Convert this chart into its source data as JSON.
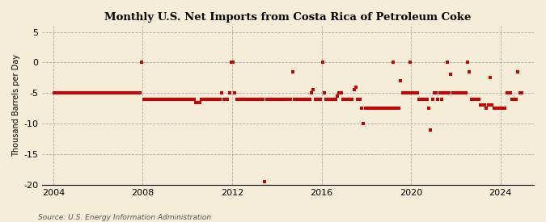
{
  "title": "Monthly U.S. Net Imports from Costa Rica of Petroleum Coke",
  "ylabel": "Thousand Barrels per Day",
  "source": "Source: U.S. Energy Information Administration",
  "background_color": "#f5edd8",
  "plot_bg_color": "#f5edd8",
  "grid_color": "#aaaaaa",
  "marker_color": "#cc0000",
  "ylim": [
    -20,
    6
  ],
  "yticks": [
    5,
    0,
    -5,
    -10,
    -15,
    -20
  ],
  "xlim_start": 2003.5,
  "xlim_end": 2025.5,
  "xticks": [
    2004,
    2008,
    2012,
    2016,
    2020,
    2024
  ],
  "vgrid_years": [
    2004,
    2008,
    2012,
    2016,
    2020,
    2024
  ],
  "data_points": [
    [
      2004.04,
      -5
    ],
    [
      2004.12,
      -5
    ],
    [
      2004.21,
      -5
    ],
    [
      2004.29,
      -5
    ],
    [
      2004.37,
      -5
    ],
    [
      2004.46,
      -5
    ],
    [
      2004.54,
      -5
    ],
    [
      2004.62,
      -5
    ],
    [
      2004.71,
      -5
    ],
    [
      2004.79,
      -5
    ],
    [
      2004.88,
      -5
    ],
    [
      2004.96,
      -5
    ],
    [
      2005.04,
      -5
    ],
    [
      2005.12,
      -5
    ],
    [
      2005.21,
      -5
    ],
    [
      2005.29,
      -5
    ],
    [
      2005.37,
      -5
    ],
    [
      2005.46,
      -5
    ],
    [
      2005.54,
      -5
    ],
    [
      2005.62,
      -5
    ],
    [
      2005.71,
      -5
    ],
    [
      2005.79,
      -5
    ],
    [
      2005.88,
      -5
    ],
    [
      2005.96,
      -5
    ],
    [
      2006.04,
      -5
    ],
    [
      2006.12,
      -5
    ],
    [
      2006.21,
      -5
    ],
    [
      2006.29,
      -5
    ],
    [
      2006.37,
      -5
    ],
    [
      2006.46,
      -5
    ],
    [
      2006.54,
      -5
    ],
    [
      2006.62,
      -5
    ],
    [
      2006.71,
      -5
    ],
    [
      2006.79,
      -5
    ],
    [
      2006.88,
      -5
    ],
    [
      2006.96,
      -5
    ],
    [
      2007.04,
      -5
    ],
    [
      2007.12,
      -5
    ],
    [
      2007.21,
      -5
    ],
    [
      2007.29,
      -5
    ],
    [
      2007.37,
      -5
    ],
    [
      2007.46,
      -5
    ],
    [
      2007.54,
      -5
    ],
    [
      2007.62,
      -5
    ],
    [
      2007.71,
      -5
    ],
    [
      2007.79,
      -5
    ],
    [
      2007.88,
      -5
    ],
    [
      2007.96,
      0
    ],
    [
      2008.04,
      -6
    ],
    [
      2008.12,
      -6
    ],
    [
      2008.21,
      -6
    ],
    [
      2008.29,
      -6
    ],
    [
      2008.37,
      -6
    ],
    [
      2008.46,
      -6
    ],
    [
      2008.54,
      -6
    ],
    [
      2008.62,
      -6
    ],
    [
      2008.71,
      -6
    ],
    [
      2008.79,
      -6
    ],
    [
      2008.88,
      -6
    ],
    [
      2008.96,
      -6
    ],
    [
      2009.04,
      -6
    ],
    [
      2009.12,
      -6
    ],
    [
      2009.21,
      -6
    ],
    [
      2009.29,
      -6
    ],
    [
      2009.37,
      -6
    ],
    [
      2009.46,
      -6
    ],
    [
      2009.54,
      -6
    ],
    [
      2009.62,
      -6
    ],
    [
      2009.71,
      -6
    ],
    [
      2009.79,
      -6
    ],
    [
      2009.88,
      -6
    ],
    [
      2009.96,
      -6
    ],
    [
      2010.04,
      -6
    ],
    [
      2010.12,
      -6
    ],
    [
      2010.21,
      -6
    ],
    [
      2010.29,
      -6
    ],
    [
      2010.37,
      -6.5
    ],
    [
      2010.46,
      -6.5
    ],
    [
      2010.54,
      -6.5
    ],
    [
      2010.62,
      -6
    ],
    [
      2010.71,
      -6
    ],
    [
      2010.79,
      -6
    ],
    [
      2010.88,
      -6
    ],
    [
      2010.96,
      -6
    ],
    [
      2011.04,
      -6
    ],
    [
      2011.12,
      -6
    ],
    [
      2011.21,
      -6
    ],
    [
      2011.29,
      -6
    ],
    [
      2011.37,
      -6
    ],
    [
      2011.46,
      -6
    ],
    [
      2011.54,
      -5
    ],
    [
      2011.62,
      -6
    ],
    [
      2011.71,
      -6
    ],
    [
      2011.79,
      -6
    ],
    [
      2011.88,
      -5
    ],
    [
      2011.96,
      0
    ],
    [
      2012.04,
      0
    ],
    [
      2012.12,
      -5
    ],
    [
      2012.21,
      -6
    ],
    [
      2012.29,
      -6
    ],
    [
      2012.37,
      -6
    ],
    [
      2012.46,
      -6
    ],
    [
      2012.54,
      -6
    ],
    [
      2012.62,
      -6
    ],
    [
      2012.71,
      -6
    ],
    [
      2012.79,
      -6
    ],
    [
      2012.88,
      -6
    ],
    [
      2012.96,
      -6
    ],
    [
      2013.04,
      -6
    ],
    [
      2013.12,
      -6
    ],
    [
      2013.21,
      -6
    ],
    [
      2013.29,
      -6
    ],
    [
      2013.37,
      -6
    ],
    [
      2013.46,
      -19.5
    ],
    [
      2013.54,
      -6
    ],
    [
      2013.62,
      -6
    ],
    [
      2013.71,
      -6
    ],
    [
      2013.79,
      -6
    ],
    [
      2013.88,
      -6
    ],
    [
      2013.96,
      -6
    ],
    [
      2014.04,
      -6
    ],
    [
      2014.12,
      -6
    ],
    [
      2014.21,
      -6
    ],
    [
      2014.29,
      -6
    ],
    [
      2014.37,
      -6
    ],
    [
      2014.46,
      -6
    ],
    [
      2014.54,
      -6
    ],
    [
      2014.62,
      -6
    ],
    [
      2014.71,
      -1.5
    ],
    [
      2014.79,
      -6
    ],
    [
      2014.88,
      -6
    ],
    [
      2014.96,
      -6
    ],
    [
      2015.04,
      -6
    ],
    [
      2015.12,
      -6
    ],
    [
      2015.21,
      -6
    ],
    [
      2015.29,
      -6
    ],
    [
      2015.37,
      -6
    ],
    [
      2015.46,
      -6
    ],
    [
      2015.54,
      -5
    ],
    [
      2015.62,
      -4.5
    ],
    [
      2015.71,
      -6
    ],
    [
      2015.79,
      -6
    ],
    [
      2015.88,
      -6
    ],
    [
      2015.96,
      -6
    ],
    [
      2016.04,
      0
    ],
    [
      2016.12,
      -5
    ],
    [
      2016.21,
      -6
    ],
    [
      2016.29,
      -6
    ],
    [
      2016.37,
      -6
    ],
    [
      2016.46,
      -6
    ],
    [
      2016.54,
      -6
    ],
    [
      2016.62,
      -6
    ],
    [
      2016.71,
      -5.5
    ],
    [
      2016.79,
      -5
    ],
    [
      2016.88,
      -5
    ],
    [
      2016.96,
      -6
    ],
    [
      2017.04,
      -6
    ],
    [
      2017.12,
      -6
    ],
    [
      2017.21,
      -6
    ],
    [
      2017.29,
      -6
    ],
    [
      2017.37,
      -6
    ],
    [
      2017.46,
      -4.5
    ],
    [
      2017.54,
      -4
    ],
    [
      2017.62,
      -6
    ],
    [
      2017.71,
      -6
    ],
    [
      2017.79,
      -7.5
    ],
    [
      2017.88,
      -10
    ],
    [
      2017.96,
      -7.5
    ],
    [
      2018.04,
      -7.5
    ],
    [
      2018.12,
      -7.5
    ],
    [
      2018.21,
      -7.5
    ],
    [
      2018.29,
      -7.5
    ],
    [
      2018.37,
      -7.5
    ],
    [
      2018.46,
      -7.5
    ],
    [
      2018.54,
      -7.5
    ],
    [
      2018.62,
      -7.5
    ],
    [
      2018.71,
      -7.5
    ],
    [
      2018.79,
      -7.5
    ],
    [
      2018.88,
      -7.5
    ],
    [
      2018.96,
      -7.5
    ],
    [
      2019.04,
      -7.5
    ],
    [
      2019.12,
      -7.5
    ],
    [
      2019.21,
      0
    ],
    [
      2019.29,
      -7.5
    ],
    [
      2019.37,
      -7.5
    ],
    [
      2019.46,
      -7.5
    ],
    [
      2019.54,
      -3
    ],
    [
      2019.62,
      -5
    ],
    [
      2019.71,
      -5
    ],
    [
      2019.79,
      -5
    ],
    [
      2019.88,
      -5
    ],
    [
      2019.96,
      0
    ],
    [
      2020.04,
      -5
    ],
    [
      2020.12,
      -5
    ],
    [
      2020.21,
      -5
    ],
    [
      2020.29,
      -5
    ],
    [
      2020.37,
      -6
    ],
    [
      2020.46,
      -6
    ],
    [
      2020.54,
      -6
    ],
    [
      2020.62,
      -6
    ],
    [
      2020.71,
      -6
    ],
    [
      2020.79,
      -7.5
    ],
    [
      2020.88,
      -11
    ],
    [
      2020.96,
      -6
    ],
    [
      2021.04,
      -5
    ],
    [
      2021.12,
      -5
    ],
    [
      2021.21,
      -6
    ],
    [
      2021.29,
      -5
    ],
    [
      2021.37,
      -6
    ],
    [
      2021.46,
      -5
    ],
    [
      2021.54,
      -5
    ],
    [
      2021.62,
      0
    ],
    [
      2021.71,
      -5
    ],
    [
      2021.79,
      -2
    ],
    [
      2021.88,
      -5
    ],
    [
      2021.96,
      -5
    ],
    [
      2022.04,
      -5
    ],
    [
      2022.12,
      -5
    ],
    [
      2022.21,
      -5
    ],
    [
      2022.29,
      -5
    ],
    [
      2022.37,
      -5
    ],
    [
      2022.46,
      -5
    ],
    [
      2022.54,
      0
    ],
    [
      2022.62,
      -1.5
    ],
    [
      2022.71,
      -6
    ],
    [
      2022.79,
      -6
    ],
    [
      2022.88,
      -6
    ],
    [
      2022.96,
      -6
    ],
    [
      2023.04,
      -6
    ],
    [
      2023.12,
      -7
    ],
    [
      2023.21,
      -7
    ],
    [
      2023.29,
      -7
    ],
    [
      2023.37,
      -7.5
    ],
    [
      2023.46,
      -7
    ],
    [
      2023.54,
      -2.5
    ],
    [
      2023.62,
      -7
    ],
    [
      2023.71,
      -7.5
    ],
    [
      2023.79,
      -7.5
    ],
    [
      2023.88,
      -7.5
    ],
    [
      2023.96,
      -7.5
    ],
    [
      2024.04,
      -7.5
    ],
    [
      2024.12,
      -7.5
    ],
    [
      2024.21,
      -7.5
    ],
    [
      2024.29,
      -5
    ],
    [
      2024.37,
      -5
    ],
    [
      2024.46,
      -5
    ],
    [
      2024.54,
      -6
    ],
    [
      2024.62,
      -6
    ],
    [
      2024.71,
      -6
    ],
    [
      2024.79,
      -1.5
    ],
    [
      2024.88,
      -5
    ],
    [
      2024.96,
      -5
    ]
  ]
}
